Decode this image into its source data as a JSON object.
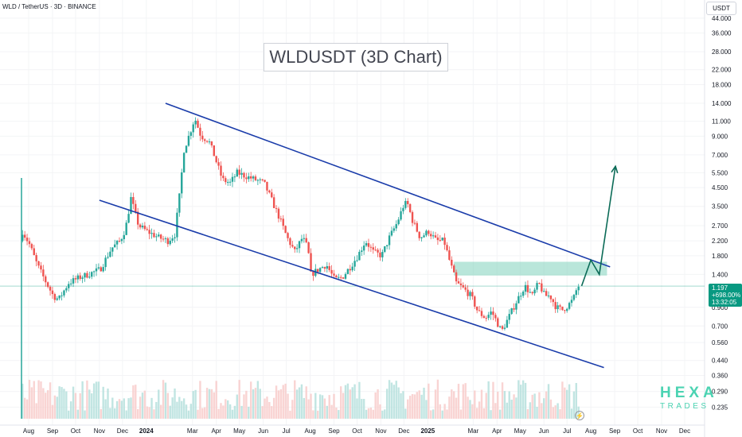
{
  "header": {
    "symbol": "WLD / TetherUS · 3D · BINANCE"
  },
  "title": "WLDUSDT (3D Chart)",
  "currency_button": "USDT",
  "price_tag": {
    "price": "1.197",
    "change": "+698.00%",
    "countdown": "13:32:05"
  },
  "watermark": {
    "line1": "HEXA",
    "line2": "TRADES"
  },
  "colors": {
    "up": "#26a69a",
    "down": "#ef5350",
    "channel": "#1a3caa",
    "projection": "#0b6b57",
    "zone": "#7fd1bc",
    "price_tag": "#089981"
  },
  "icons": {
    "replay": "lightning-bolt-icon"
  },
  "chart_data": {
    "type": "candlestick",
    "title": "WLDUSDT (3D Chart)",
    "scale": "log",
    "y_ticks": [
      44.0,
      36.0,
      28.0,
      22.0,
      18.0,
      14.0,
      11.0,
      9.0,
      7.0,
      5.5,
      4.5,
      3.5,
      2.7,
      2.2,
      1.8,
      1.4,
      0.9,
      0.7,
      0.56,
      0.44,
      0.36,
      0.29,
      0.235
    ],
    "y_tick_labels": [
      "44.000",
      "36.000",
      "28.000",
      "22.000",
      "18.000",
      "14.000",
      "11.000",
      "9.000",
      "7.000",
      "5.500",
      "4.500",
      "3.500",
      "2.700",
      "2.200",
      "1.800",
      "1.400",
      "0.900",
      "0.700",
      "0.560",
      "0.440",
      "0.360",
      "0.290",
      "0.235"
    ],
    "x_ticks": [
      {
        "date": "2023-08-01",
        "label": "Aug",
        "bold": false
      },
      {
        "date": "2023-09-01",
        "label": "Sep",
        "bold": false
      },
      {
        "date": "2023-10-01",
        "label": "Oct",
        "bold": false
      },
      {
        "date": "2023-11-01",
        "label": "Nov",
        "bold": false
      },
      {
        "date": "2023-12-01",
        "label": "Dec",
        "bold": false
      },
      {
        "date": "2024-01-01",
        "label": "2024",
        "bold": true
      },
      {
        "date": "2024-03-01",
        "label": "Mar",
        "bold": false
      },
      {
        "date": "2024-04-01",
        "label": "Apr",
        "bold": false
      },
      {
        "date": "2024-05-01",
        "label": "May",
        "bold": false
      },
      {
        "date": "2024-06-01",
        "label": "Jun",
        "bold": false
      },
      {
        "date": "2024-07-01",
        "label": "Jul",
        "bold": false
      },
      {
        "date": "2024-08-01",
        "label": "Aug",
        "bold": false
      },
      {
        "date": "2024-09-01",
        "label": "Sep",
        "bold": false
      },
      {
        "date": "2024-10-01",
        "label": "Oct",
        "bold": false
      },
      {
        "date": "2024-11-01",
        "label": "Nov",
        "bold": false
      },
      {
        "date": "2024-12-01",
        "label": "Dec",
        "bold": false
      },
      {
        "date": "2025-01-01",
        "label": "2025",
        "bold": true
      },
      {
        "date": "2025-03-01",
        "label": "Mar",
        "bold": false
      },
      {
        "date": "2025-04-01",
        "label": "Apr",
        "bold": false
      },
      {
        "date": "2025-05-01",
        "label": "May",
        "bold": false
      },
      {
        "date": "2025-06-01",
        "label": "Jun",
        "bold": false
      },
      {
        "date": "2025-07-01",
        "label": "Jul",
        "bold": false
      },
      {
        "date": "2025-08-01",
        "label": "Aug",
        "bold": false
      },
      {
        "date": "2025-09-01",
        "label": "Sep",
        "bold": false
      },
      {
        "date": "2025-10-01",
        "label": "Oct",
        "bold": false
      },
      {
        "date": "2025-11-01",
        "label": "Nov",
        "bold": false
      },
      {
        "date": "2025-12-01",
        "label": "Dec",
        "bold": false
      }
    ],
    "last_price": 1.197,
    "price_path": [
      [
        "2023-07-24",
        2.2
      ],
      [
        "2023-07-27",
        2.5
      ],
      [
        "2023-08-05",
        2.1
      ],
      [
        "2023-08-15",
        1.6
      ],
      [
        "2023-08-25",
        1.3
      ],
      [
        "2023-09-05",
        1.05
      ],
      [
        "2023-09-12",
        1.0
      ],
      [
        "2023-09-25",
        1.25
      ],
      [
        "2023-10-10",
        1.35
      ],
      [
        "2023-10-20",
        1.4
      ],
      [
        "2023-11-05",
        1.5
      ],
      [
        "2023-11-20",
        2.0
      ],
      [
        "2023-12-01",
        2.2
      ],
      [
        "2023-12-08",
        2.6
      ],
      [
        "2023-12-15",
        3.9
      ],
      [
        "2023-12-25",
        2.7
      ],
      [
        "2024-01-05",
        2.5
      ],
      [
        "2024-01-20",
        2.3
      ],
      [
        "2024-02-01",
        2.2
      ],
      [
        "2024-02-10",
        2.4
      ],
      [
        "2024-02-16",
        4.0
      ],
      [
        "2024-02-22",
        7.5
      ],
      [
        "2024-03-01",
        9.5
      ],
      [
        "2024-03-07",
        11.5
      ],
      [
        "2024-03-15",
        9.0
      ],
      [
        "2024-03-25",
        8.5
      ],
      [
        "2024-04-01",
        7.0
      ],
      [
        "2024-04-12",
        5.0
      ],
      [
        "2024-04-22",
        4.8
      ],
      [
        "2024-05-01",
        5.5
      ],
      [
        "2024-05-10",
        5.3
      ],
      [
        "2024-05-25",
        5.0
      ],
      [
        "2024-06-05",
        4.8
      ],
      [
        "2024-06-15",
        3.8
      ],
      [
        "2024-06-25",
        3.0
      ],
      [
        "2024-07-05",
        2.3
      ],
      [
        "2024-07-15",
        1.9
      ],
      [
        "2024-07-25",
        2.3
      ],
      [
        "2024-08-01",
        2.0
      ],
      [
        "2024-08-05",
        1.4
      ],
      [
        "2024-08-15",
        1.5
      ],
      [
        "2024-08-25",
        1.6
      ],
      [
        "2024-09-05",
        1.3
      ],
      [
        "2024-09-15",
        1.35
      ],
      [
        "2024-09-25",
        1.55
      ],
      [
        "2024-10-05",
        1.8
      ],
      [
        "2024-10-15",
        2.2
      ],
      [
        "2024-10-25",
        1.9
      ],
      [
        "2024-11-05",
        1.8
      ],
      [
        "2024-11-15",
        2.3
      ],
      [
        "2024-11-25",
        2.8
      ],
      [
        "2024-12-03",
        3.5
      ],
      [
        "2024-12-08",
        3.7
      ],
      [
        "2024-12-15",
        2.9
      ],
      [
        "2024-12-25",
        2.3
      ],
      [
        "2025-01-05",
        2.5
      ],
      [
        "2025-01-15",
        2.2
      ],
      [
        "2025-01-25",
        2.2
      ],
      [
        "2025-02-01",
        1.7
      ],
      [
        "2025-02-10",
        1.25
      ],
      [
        "2025-02-20",
        1.15
      ],
      [
        "2025-03-01",
        1.05
      ],
      [
        "2025-03-10",
        0.85
      ],
      [
        "2025-03-20",
        0.78
      ],
      [
        "2025-03-28",
        0.85
      ],
      [
        "2025-04-05",
        0.72
      ],
      [
        "2025-04-10",
        0.65
      ],
      [
        "2025-04-20",
        0.8
      ],
      [
        "2025-04-28",
        0.95
      ],
      [
        "2025-05-10",
        1.2
      ],
      [
        "2025-05-20",
        1.05
      ],
      [
        "2025-05-28",
        1.25
      ],
      [
        "2025-06-05",
        1.05
      ],
      [
        "2025-06-12",
        1.05
      ],
      [
        "2025-06-20",
        0.9
      ],
      [
        "2025-06-28",
        0.87
      ],
      [
        "2025-07-05",
        0.92
      ],
      [
        "2025-07-12",
        1.0
      ],
      [
        "2025-07-18",
        1.197
      ]
    ],
    "channel": {
      "upper": [
        [
          "2024-01-26",
          14.0
        ],
        [
          "2025-08-26",
          1.55
        ]
      ],
      "lower": [
        [
          "2023-11-01",
          3.8
        ],
        [
          "2025-08-18",
          0.4
        ]
      ]
    },
    "resistance_zone": {
      "from": "2025-02-04",
      "to": "2025-08-22",
      "top": 1.66,
      "bottom": 1.38
    },
    "projection": [
      [
        "2025-07-20",
        1.2
      ],
      [
        "2025-08-01",
        1.7
      ],
      [
        "2025-08-12",
        1.4
      ],
      [
        "2025-09-02",
        6.0
      ]
    ]
  }
}
